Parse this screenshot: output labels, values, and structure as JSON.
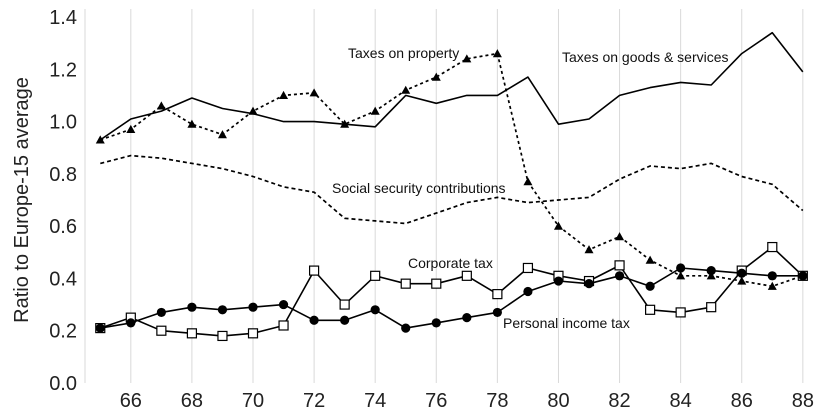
{
  "chart_data": {
    "type": "line",
    "ylabel": "Ratio to Europe-15 average",
    "xlabel": "",
    "xlim": [
      64.5,
      88.3
    ],
    "ylim": [
      0,
      1.4
    ],
    "xticks": [
      66,
      68,
      70,
      72,
      74,
      76,
      78,
      80,
      82,
      84,
      86,
      88
    ],
    "yticks": [
      0.0,
      0.2,
      0.4,
      0.6,
      0.8,
      1.0,
      1.2,
      1.4
    ],
    "ytick_labels": [
      "0.0",
      "0.2",
      "0.4",
      "0.6",
      "0.8",
      "1.0",
      "1.2",
      "1.4"
    ],
    "grid": "vertical",
    "x": [
      65,
      66,
      67,
      68,
      69,
      70,
      71,
      72,
      73,
      74,
      75,
      76,
      77,
      78,
      79,
      80,
      81,
      82,
      83,
      84,
      85,
      86,
      87,
      88
    ],
    "series": [
      {
        "name": "Taxes on goods & services",
        "style": "solid",
        "marker": "none",
        "color": "#000000",
        "values": [
          0.93,
          1.01,
          1.04,
          1.09,
          1.05,
          1.03,
          1.0,
          1.0,
          0.99,
          0.98,
          1.1,
          1.07,
          1.1,
          1.1,
          1.17,
          0.99,
          1.01,
          1.1,
          1.13,
          1.15,
          1.14,
          1.26,
          1.34,
          1.19
        ]
      },
      {
        "name": "Taxes on property",
        "style": "dotted",
        "marker": "triangle",
        "color": "#000000",
        "values": [
          0.93,
          0.97,
          1.06,
          0.99,
          0.95,
          1.04,
          1.1,
          1.11,
          0.99,
          1.04,
          1.12,
          1.17,
          1.24,
          1.26,
          0.77,
          0.6,
          0.51,
          0.56,
          0.47,
          0.41,
          0.41,
          0.39,
          0.37,
          0.41
        ]
      },
      {
        "name": "Social security contributions",
        "style": "dashed",
        "marker": "none",
        "color": "#000000",
        "values": [
          0.84,
          0.87,
          0.86,
          0.84,
          0.82,
          0.79,
          0.75,
          0.73,
          0.63,
          0.62,
          0.61,
          0.65,
          0.69,
          0.71,
          0.69,
          0.7,
          0.71,
          0.78,
          0.83,
          0.82,
          0.84,
          0.79,
          0.76,
          0.66
        ]
      },
      {
        "name": "Corporate tax",
        "style": "solid",
        "marker": "square-open",
        "color": "#000000",
        "values": [
          0.21,
          0.25,
          0.2,
          0.19,
          0.18,
          0.19,
          0.22,
          0.43,
          0.3,
          0.41,
          0.38,
          0.38,
          0.41,
          0.34,
          0.44,
          0.41,
          0.39,
          0.45,
          0.28,
          0.27,
          0.29,
          0.43,
          0.52,
          0.41
        ]
      },
      {
        "name": "Personal income tax",
        "style": "solid",
        "marker": "circle-filled",
        "color": "#000000",
        "values": [
          0.21,
          0.23,
          0.27,
          0.29,
          0.28,
          0.29,
          0.3,
          0.24,
          0.24,
          0.28,
          0.21,
          0.23,
          0.25,
          0.27,
          0.35,
          0.39,
          0.38,
          0.41,
          0.37,
          0.44,
          0.43,
          0.42,
          0.41,
          0.41
        ]
      }
    ]
  }
}
